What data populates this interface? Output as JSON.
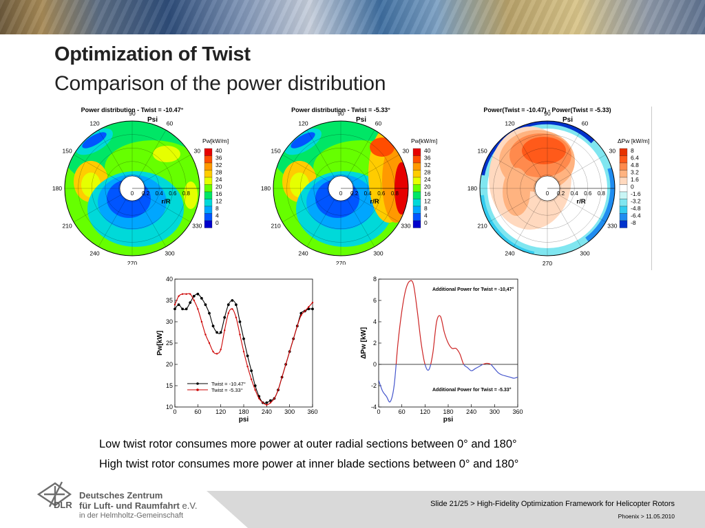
{
  "slide": {
    "title": "Optimization of Twist",
    "subtitle": "Comparison of the power distribution",
    "bullets": [
      "Low twist rotor consumes more power at outer radial sections between 0° and 180°",
      "High twist rotor consumes more power at inner blade sections between 0° and 180°"
    ],
    "footer": {
      "slide_info": "Slide 21/25 > High-Fidelity Optimization Framework for Helicopter Rotors",
      "event_info": "Phoenix > 11.05.2010",
      "org_line1": "Deutsches Zentrum",
      "org_line2": "für Luft- und Raumfahrt",
      "org_line2_suffix": "e.V.",
      "org_line3": "in der Helmholtz-Gemeinschaft",
      "logo_text": "DLR"
    }
  },
  "chart_data": [
    {
      "type": "heatmap",
      "subtype": "polar-contour",
      "title": "Power distribution - Twist = -10.47°",
      "angle_label": "Psi",
      "radius_label": "r/R",
      "angle_ticks": [
        "0",
        "30",
        "60",
        "90",
        "120",
        "150",
        "180",
        "210",
        "240",
        "270",
        "300",
        "330"
      ],
      "radius_ticks": [
        "0",
        "0.2",
        "0.4",
        "0.6",
        "0.8"
      ],
      "legend_title": "Pw[kW/m]",
      "legend_levels": [
        "40",
        "36",
        "32",
        "28",
        "24",
        "20",
        "16",
        "12",
        "8",
        "4",
        "0"
      ],
      "legend_colors": [
        "#e60000",
        "#ff4d00",
        "#ff9900",
        "#ffcc00",
        "#e6ff00",
        "#66ff00",
        "#00e666",
        "#00d9d9",
        "#00a6ff",
        "#0055ff",
        "#0000cc"
      ]
    },
    {
      "type": "heatmap",
      "subtype": "polar-contour",
      "title": "Power distribution - Twist = -5.33°",
      "angle_label": "Psi",
      "radius_label": "r/R",
      "angle_ticks": [
        "0",
        "30",
        "60",
        "90",
        "120",
        "150",
        "180",
        "210",
        "240",
        "270",
        "300",
        "330"
      ],
      "radius_ticks": [
        "0",
        "0.2",
        "0.4",
        "0.6",
        "0.8"
      ],
      "legend_title": "Pw[kW/m]",
      "legend_levels": [
        "40",
        "36",
        "32",
        "28",
        "24",
        "20",
        "16",
        "12",
        "8",
        "4",
        "0"
      ],
      "legend_colors": [
        "#e60000",
        "#ff4d00",
        "#ff9900",
        "#ffcc00",
        "#e6ff00",
        "#66ff00",
        "#00e666",
        "#00d9d9",
        "#00a6ff",
        "#0055ff",
        "#0000cc"
      ]
    },
    {
      "type": "heatmap",
      "subtype": "polar-contour",
      "title": "Power(Twist = -10.47) - Power(Twist = -5.33)",
      "angle_label": "Psi",
      "radius_label": "r/R",
      "angle_ticks": [
        "0",
        "30",
        "60",
        "90",
        "120",
        "150",
        "180",
        "210",
        "240",
        "270",
        "300",
        "330"
      ],
      "radius_ticks": [
        "0",
        "0.2",
        "0.4",
        "0.6",
        "0.8"
      ],
      "legend_title": "ΔPw [kW/m]",
      "legend_levels": [
        "8",
        "6.4",
        "4.8",
        "3.2",
        "1.6",
        "0",
        "-1.6",
        "-3.2",
        "-4.8",
        "-6.4",
        "-8"
      ],
      "legend_colors": [
        "#e63300",
        "#ff5a1a",
        "#ff8a4d",
        "#ffb380",
        "#ffd9bf",
        "#ffffff",
        "#c8f5f5",
        "#80e6f0",
        "#33ccf0",
        "#1f8cf0",
        "#0033cc"
      ]
    },
    {
      "type": "line",
      "xlabel": "psi",
      "ylabel": "Pw[kW]",
      "xlim": [
        0,
        360
      ],
      "ylim": [
        10,
        40
      ],
      "xticks": [
        "0",
        "60",
        "120",
        "180",
        "240",
        "300",
        "360"
      ],
      "yticks": [
        "10",
        "15",
        "20",
        "25",
        "30",
        "35",
        "40"
      ],
      "series": [
        {
          "name": "Twist = -10.47°",
          "color": "#000000",
          "x": [
            0,
            10,
            20,
            30,
            40,
            50,
            60,
            70,
            80,
            90,
            100,
            110,
            120,
            130,
            140,
            150,
            160,
            170,
            180,
            190,
            200,
            210,
            220,
            230,
            240,
            250,
            260,
            270,
            280,
            290,
            300,
            310,
            320,
            330,
            340,
            350,
            360
          ],
          "y": [
            33,
            34,
            33,
            33,
            34.5,
            36,
            36.5,
            35.5,
            34,
            32,
            29,
            27.5,
            27.5,
            31,
            34,
            35,
            34,
            30,
            26,
            22,
            18.5,
            15,
            12.5,
            11,
            11,
            11.5,
            12,
            14,
            17,
            20,
            23,
            26,
            29,
            32,
            32.5,
            33,
            33
          ]
        },
        {
          "name": "Twist = -5.33°",
          "color": "#cc0000",
          "x": [
            0,
            10,
            20,
            30,
            40,
            50,
            60,
            70,
            80,
            90,
            100,
            110,
            120,
            130,
            140,
            150,
            160,
            170,
            180,
            190,
            200,
            210,
            220,
            230,
            240,
            250,
            260,
            270,
            280,
            290,
            300,
            310,
            320,
            330,
            340,
            350,
            360
          ],
          "y": [
            34,
            36,
            36.5,
            36.5,
            36.5,
            35,
            33,
            30,
            27,
            25,
            23,
            22.5,
            23.5,
            28,
            32,
            33,
            31,
            27,
            23,
            19.5,
            16.5,
            14,
            12,
            11,
            10.5,
            11,
            12,
            14,
            17,
            20,
            23,
            26,
            29,
            31.5,
            32.5,
            33.5,
            34.5
          ]
        }
      ]
    },
    {
      "type": "line",
      "xlabel": "psi",
      "ylabel": "ΔPw [kW]",
      "xlim": [
        0,
        360
      ],
      "ylim": [
        -4,
        8
      ],
      "xticks": [
        "0",
        "60",
        "120",
        "180",
        "240",
        "300",
        "360"
      ],
      "yticks": [
        "-4",
        "-2",
        "0",
        "2",
        "4",
        "6",
        "8"
      ],
      "annotations": [
        "Additional Power for Twist = -10,47°",
        "Additional Power for Twist = -5.33°"
      ],
      "series": [
        {
          "name": "ΔPw",
          "color_positive": "#cc2222",
          "color_negative": "#4455cc",
          "x": [
            0,
            10,
            20,
            30,
            40,
            50,
            60,
            70,
            80,
            90,
            100,
            110,
            120,
            130,
            140,
            150,
            160,
            170,
            180,
            190,
            200,
            210,
            220,
            230,
            240,
            250,
            260,
            270,
            280,
            290,
            300,
            310,
            320,
            330,
            340,
            350,
            360
          ],
          "y": [
            -1.5,
            -2.5,
            -3,
            -3.5,
            -2,
            2,
            5,
            7,
            7.8,
            7.5,
            5,
            2,
            0,
            -0.5,
            1,
            4,
            4.5,
            3,
            2,
            1.5,
            1.5,
            1,
            0,
            -0.3,
            -0.6,
            -0.4,
            -0.2,
            0,
            0.1,
            0,
            -0.4,
            -0.8,
            -1,
            -1.1,
            -1.2,
            -1.3,
            -1.2
          ]
        }
      ]
    }
  ]
}
